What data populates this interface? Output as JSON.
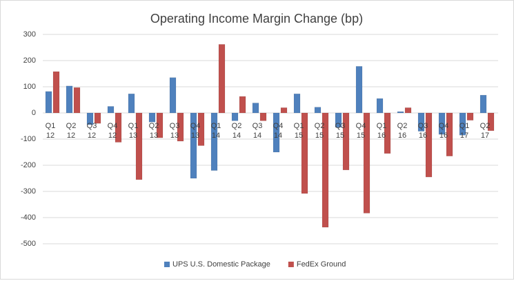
{
  "chart_data": {
    "type": "bar",
    "title": "Operating Income Margin Change (bp)",
    "categories": [
      [
        "Q1",
        "12"
      ],
      [
        "Q2",
        "12"
      ],
      [
        "Q3",
        "12"
      ],
      [
        "Q4",
        "12"
      ],
      [
        "Q1",
        "13"
      ],
      [
        "Q2",
        "13"
      ],
      [
        "Q3",
        "13"
      ],
      [
        "Q4",
        "13"
      ],
      [
        "Q1",
        "14"
      ],
      [
        "Q2",
        "14"
      ],
      [
        "Q3",
        "14"
      ],
      [
        "Q4",
        "14"
      ],
      [
        "Q1",
        "15"
      ],
      [
        "Q2",
        "15"
      ],
      [
        "Q3",
        "15"
      ],
      [
        "Q4",
        "15"
      ],
      [
        "Q1",
        "16"
      ],
      [
        "Q2",
        "16"
      ],
      [
        "Q3",
        "16"
      ],
      [
        "Q4",
        "16"
      ],
      [
        "Q1",
        "17"
      ],
      [
        "Q2",
        "17"
      ]
    ],
    "series": [
      {
        "name": "UPS U.S. Domestic Package",
        "color": "#4f81bd",
        "values": [
          82,
          103,
          -45,
          25,
          73,
          -35,
          135,
          -250,
          -220,
          -30,
          38,
          -150,
          73,
          22,
          -55,
          178,
          55,
          5,
          -70,
          -82,
          -85,
          68
        ]
      },
      {
        "name": "FedEx Ground",
        "color": "#c0504d",
        "values": [
          158,
          97,
          -40,
          -112,
          -255,
          -95,
          -108,
          -125,
          262,
          63,
          -30,
          20,
          -308,
          -437,
          -218,
          -383,
          -155,
          20,
          -245,
          -165,
          -28,
          -68
        ]
      }
    ],
    "ylim": [
      -500,
      300
    ],
    "yticks": [
      -500,
      -400,
      -300,
      -200,
      -100,
      0,
      100,
      200,
      300
    ],
    "grid": true,
    "legend": "bottom"
  }
}
